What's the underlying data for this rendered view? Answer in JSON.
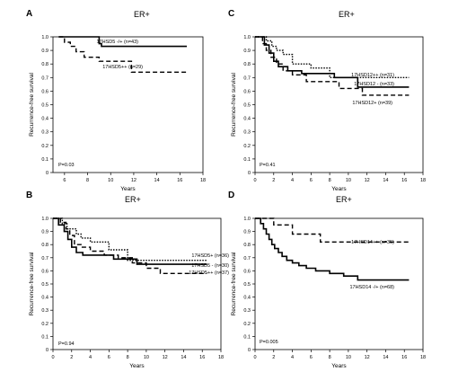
{
  "chart_data": [
    {
      "panel": "A",
      "title": "ER+",
      "type": "line",
      "xlabel": "Years",
      "ylabel": "Recurrence-free survival",
      "xlim": [
        5,
        18
      ],
      "ylim": [
        0,
        1.0
      ],
      "xticks": [
        "6",
        "8",
        "10",
        "12",
        "14",
        "16",
        "18"
      ],
      "yticks": [
        "0",
        "0.1",
        "0.2",
        "0.3",
        "0.4",
        "0.5",
        "0.6",
        "0.7",
        "0.8",
        "0.9",
        "1.0"
      ],
      "pvalue": "P=0.03",
      "series": [
        {
          "name": "17HSD5 -/+ (n=43)",
          "style": "solid",
          "x": [
            5.5,
            9.0,
            9.0,
            9.2,
            9.2,
            16.6
          ],
          "y": [
            1.0,
            1.0,
            0.95,
            0.95,
            0.93,
            0.93
          ]
        },
        {
          "name": "17HSD5++ (n=29)",
          "style": "dashed",
          "x": [
            5.5,
            6.0,
            6.0,
            6.5,
            6.5,
            7.0,
            7.0,
            7.7,
            7.7,
            9.0,
            9.0,
            11.8,
            11.8,
            16.6
          ],
          "y": [
            1.0,
            1.0,
            0.96,
            0.96,
            0.93,
            0.93,
            0.89,
            0.89,
            0.85,
            0.85,
            0.82,
            0.82,
            0.74,
            0.74
          ]
        }
      ]
    },
    {
      "panel": "C",
      "title": "ER+",
      "type": "line",
      "xlabel": "Years",
      "ylabel": "Recurrence-free survival",
      "xlim": [
        0,
        18
      ],
      "ylim": [
        0,
        1.0
      ],
      "xticks": [
        "0",
        "2",
        "4",
        "6",
        "8",
        "10",
        "12",
        "14",
        "16",
        "18"
      ],
      "yticks": [
        "0",
        "0.1",
        "0.2",
        "0.3",
        "0.4",
        "0.5",
        "0.6",
        "0.7",
        "0.8",
        "0.9",
        "1.0"
      ],
      "pvalue": "P=0.41",
      "series": [
        {
          "name": "17HSD12++ (n=31)",
          "style": "dotted",
          "x": [
            0,
            1.2,
            1.2,
            1.8,
            1.8,
            2.3,
            2.3,
            3.0,
            3.0,
            4.0,
            4.0,
            6.0,
            6.0,
            8.0,
            8.0,
            16.5
          ],
          "y": [
            1.0,
            1.0,
            0.97,
            0.97,
            0.93,
            0.93,
            0.9,
            0.9,
            0.87,
            0.87,
            0.8,
            0.8,
            0.77,
            0.77,
            0.7,
            0.7
          ]
        },
        {
          "name": "17HSD12 - (n=33)",
          "style": "solid",
          "x": [
            0,
            1.0,
            1.0,
            1.5,
            1.5,
            2.0,
            2.0,
            2.5,
            2.5,
            3.5,
            3.5,
            5.0,
            5.0,
            8.5,
            8.5,
            11.0,
            11.0,
            16.5
          ],
          "y": [
            1.0,
            1.0,
            0.94,
            0.94,
            0.88,
            0.88,
            0.82,
            0.82,
            0.78,
            0.78,
            0.75,
            0.75,
            0.73,
            0.73,
            0.7,
            0.7,
            0.63,
            0.63
          ]
        },
        {
          "name": "17HSD12+ (n=39)",
          "style": "dashed",
          "x": [
            0,
            0.8,
            0.8,
            1.2,
            1.2,
            1.7,
            1.7,
            2.3,
            2.3,
            3.0,
            3.0,
            4.0,
            4.0,
            5.5,
            5.5,
            9.0,
            9.0,
            11.5,
            11.5,
            16.5
          ],
          "y": [
            1.0,
            1.0,
            0.95,
            0.95,
            0.9,
            0.9,
            0.85,
            0.85,
            0.8,
            0.8,
            0.75,
            0.75,
            0.72,
            0.72,
            0.67,
            0.67,
            0.62,
            0.62,
            0.57,
            0.57
          ]
        }
      ]
    },
    {
      "panel": "B",
      "title": "ER+",
      "type": "line",
      "xlabel": "Years",
      "ylabel": "Recurrence-free survival",
      "xlim": [
        0,
        18
      ],
      "ylim": [
        0,
        1.0
      ],
      "xticks": [
        "0",
        "2",
        "4",
        "6",
        "8",
        "10",
        "12",
        "14",
        "16",
        "18"
      ],
      "yticks": [
        "0",
        "0.1",
        "0.2",
        "0.3",
        "0.4",
        "0.5",
        "0.6",
        "0.7",
        "0.8",
        "0.9",
        "1.0"
      ],
      "pvalue": "P=0.94",
      "series": [
        {
          "name": "17HSD5+ (n=36)",
          "style": "solid",
          "x": [
            0,
            0.6,
            0.6,
            1.2,
            1.2,
            1.6,
            1.6,
            2.0,
            2.0,
            2.5,
            2.5,
            3.2,
            3.2,
            6.5,
            6.5,
            9.0,
            9.0,
            16.5
          ],
          "y": [
            1.0,
            1.0,
            0.95,
            0.95,
            0.9,
            0.9,
            0.84,
            0.84,
            0.78,
            0.78,
            0.74,
            0.74,
            0.72,
            0.72,
            0.69,
            0.69,
            0.65,
            0.65
          ]
        },
        {
          "name": "17HSD5 - (n=30)",
          "style": "dotted",
          "x": [
            0,
            1.0,
            1.0,
            1.5,
            1.5,
            2.5,
            2.5,
            3.0,
            3.0,
            4.0,
            4.0,
            6.0,
            6.0,
            8.0,
            8.0,
            16.5
          ],
          "y": [
            1.0,
            1.0,
            0.96,
            0.96,
            0.92,
            0.92,
            0.88,
            0.88,
            0.85,
            0.85,
            0.82,
            0.82,
            0.76,
            0.76,
            0.68,
            0.68
          ]
        },
        {
          "name": "17HSD5++ (n=37)",
          "style": "dashed",
          "x": [
            0,
            0.8,
            0.8,
            1.4,
            1.4,
            1.8,
            1.8,
            2.3,
            2.3,
            3.0,
            3.0,
            4.0,
            4.0,
            5.5,
            5.5,
            7.0,
            7.0,
            8.5,
            8.5,
            10.0,
            10.0,
            11.5,
            11.5,
            16.5
          ],
          "y": [
            1.0,
            1.0,
            0.97,
            0.97,
            0.92,
            0.92,
            0.87,
            0.87,
            0.8,
            0.8,
            0.78,
            0.78,
            0.75,
            0.75,
            0.72,
            0.72,
            0.7,
            0.7,
            0.66,
            0.66,
            0.62,
            0.62,
            0.58,
            0.58
          ]
        }
      ]
    },
    {
      "panel": "D",
      "title": "ER+",
      "type": "line",
      "xlabel": "Years",
      "ylabel": "Recurrence-free survival",
      "xlim": [
        0,
        18
      ],
      "ylim": [
        0,
        1.0
      ],
      "xticks": [
        "0",
        "2",
        "4",
        "6",
        "8",
        "10",
        "12",
        "14",
        "16",
        "18"
      ],
      "yticks": [
        "0",
        "0.1",
        "0.2",
        "0.3",
        "0.4",
        "0.5",
        "0.6",
        "0.7",
        "0.8",
        "0.9",
        "1.0"
      ],
      "pvalue": "P=0.005",
      "series": [
        {
          "name": "17HSD14++ (n=35)",
          "style": "dashed",
          "x": [
            0,
            2.0,
            2.0,
            4.0,
            4.0,
            7.0,
            7.0,
            16.5
          ],
          "y": [
            1.0,
            1.0,
            0.95,
            0.95,
            0.88,
            0.88,
            0.82,
            0.82
          ]
        },
        {
          "name": "17HSD14 -/+ (n=68)",
          "style": "solid",
          "x": [
            0,
            0.6,
            0.6,
            0.9,
            0.9,
            1.2,
            1.2,
            1.5,
            1.5,
            1.8,
            1.8,
            2.1,
            2.1,
            2.5,
            2.5,
            2.9,
            2.9,
            3.4,
            3.4,
            4.0,
            4.0,
            4.7,
            4.7,
            5.5,
            5.5,
            6.5,
            6.5,
            8.0,
            8.0,
            9.5,
            9.5,
            11.0,
            11.0,
            16.5
          ],
          "y": [
            1.0,
            1.0,
            0.96,
            0.96,
            0.92,
            0.92,
            0.88,
            0.88,
            0.84,
            0.84,
            0.8,
            0.8,
            0.77,
            0.77,
            0.74,
            0.74,
            0.71,
            0.71,
            0.68,
            0.68,
            0.66,
            0.66,
            0.64,
            0.64,
            0.62,
            0.62,
            0.6,
            0.6,
            0.58,
            0.58,
            0.56,
            0.56,
            0.53,
            0.53
          ]
        }
      ]
    }
  ]
}
